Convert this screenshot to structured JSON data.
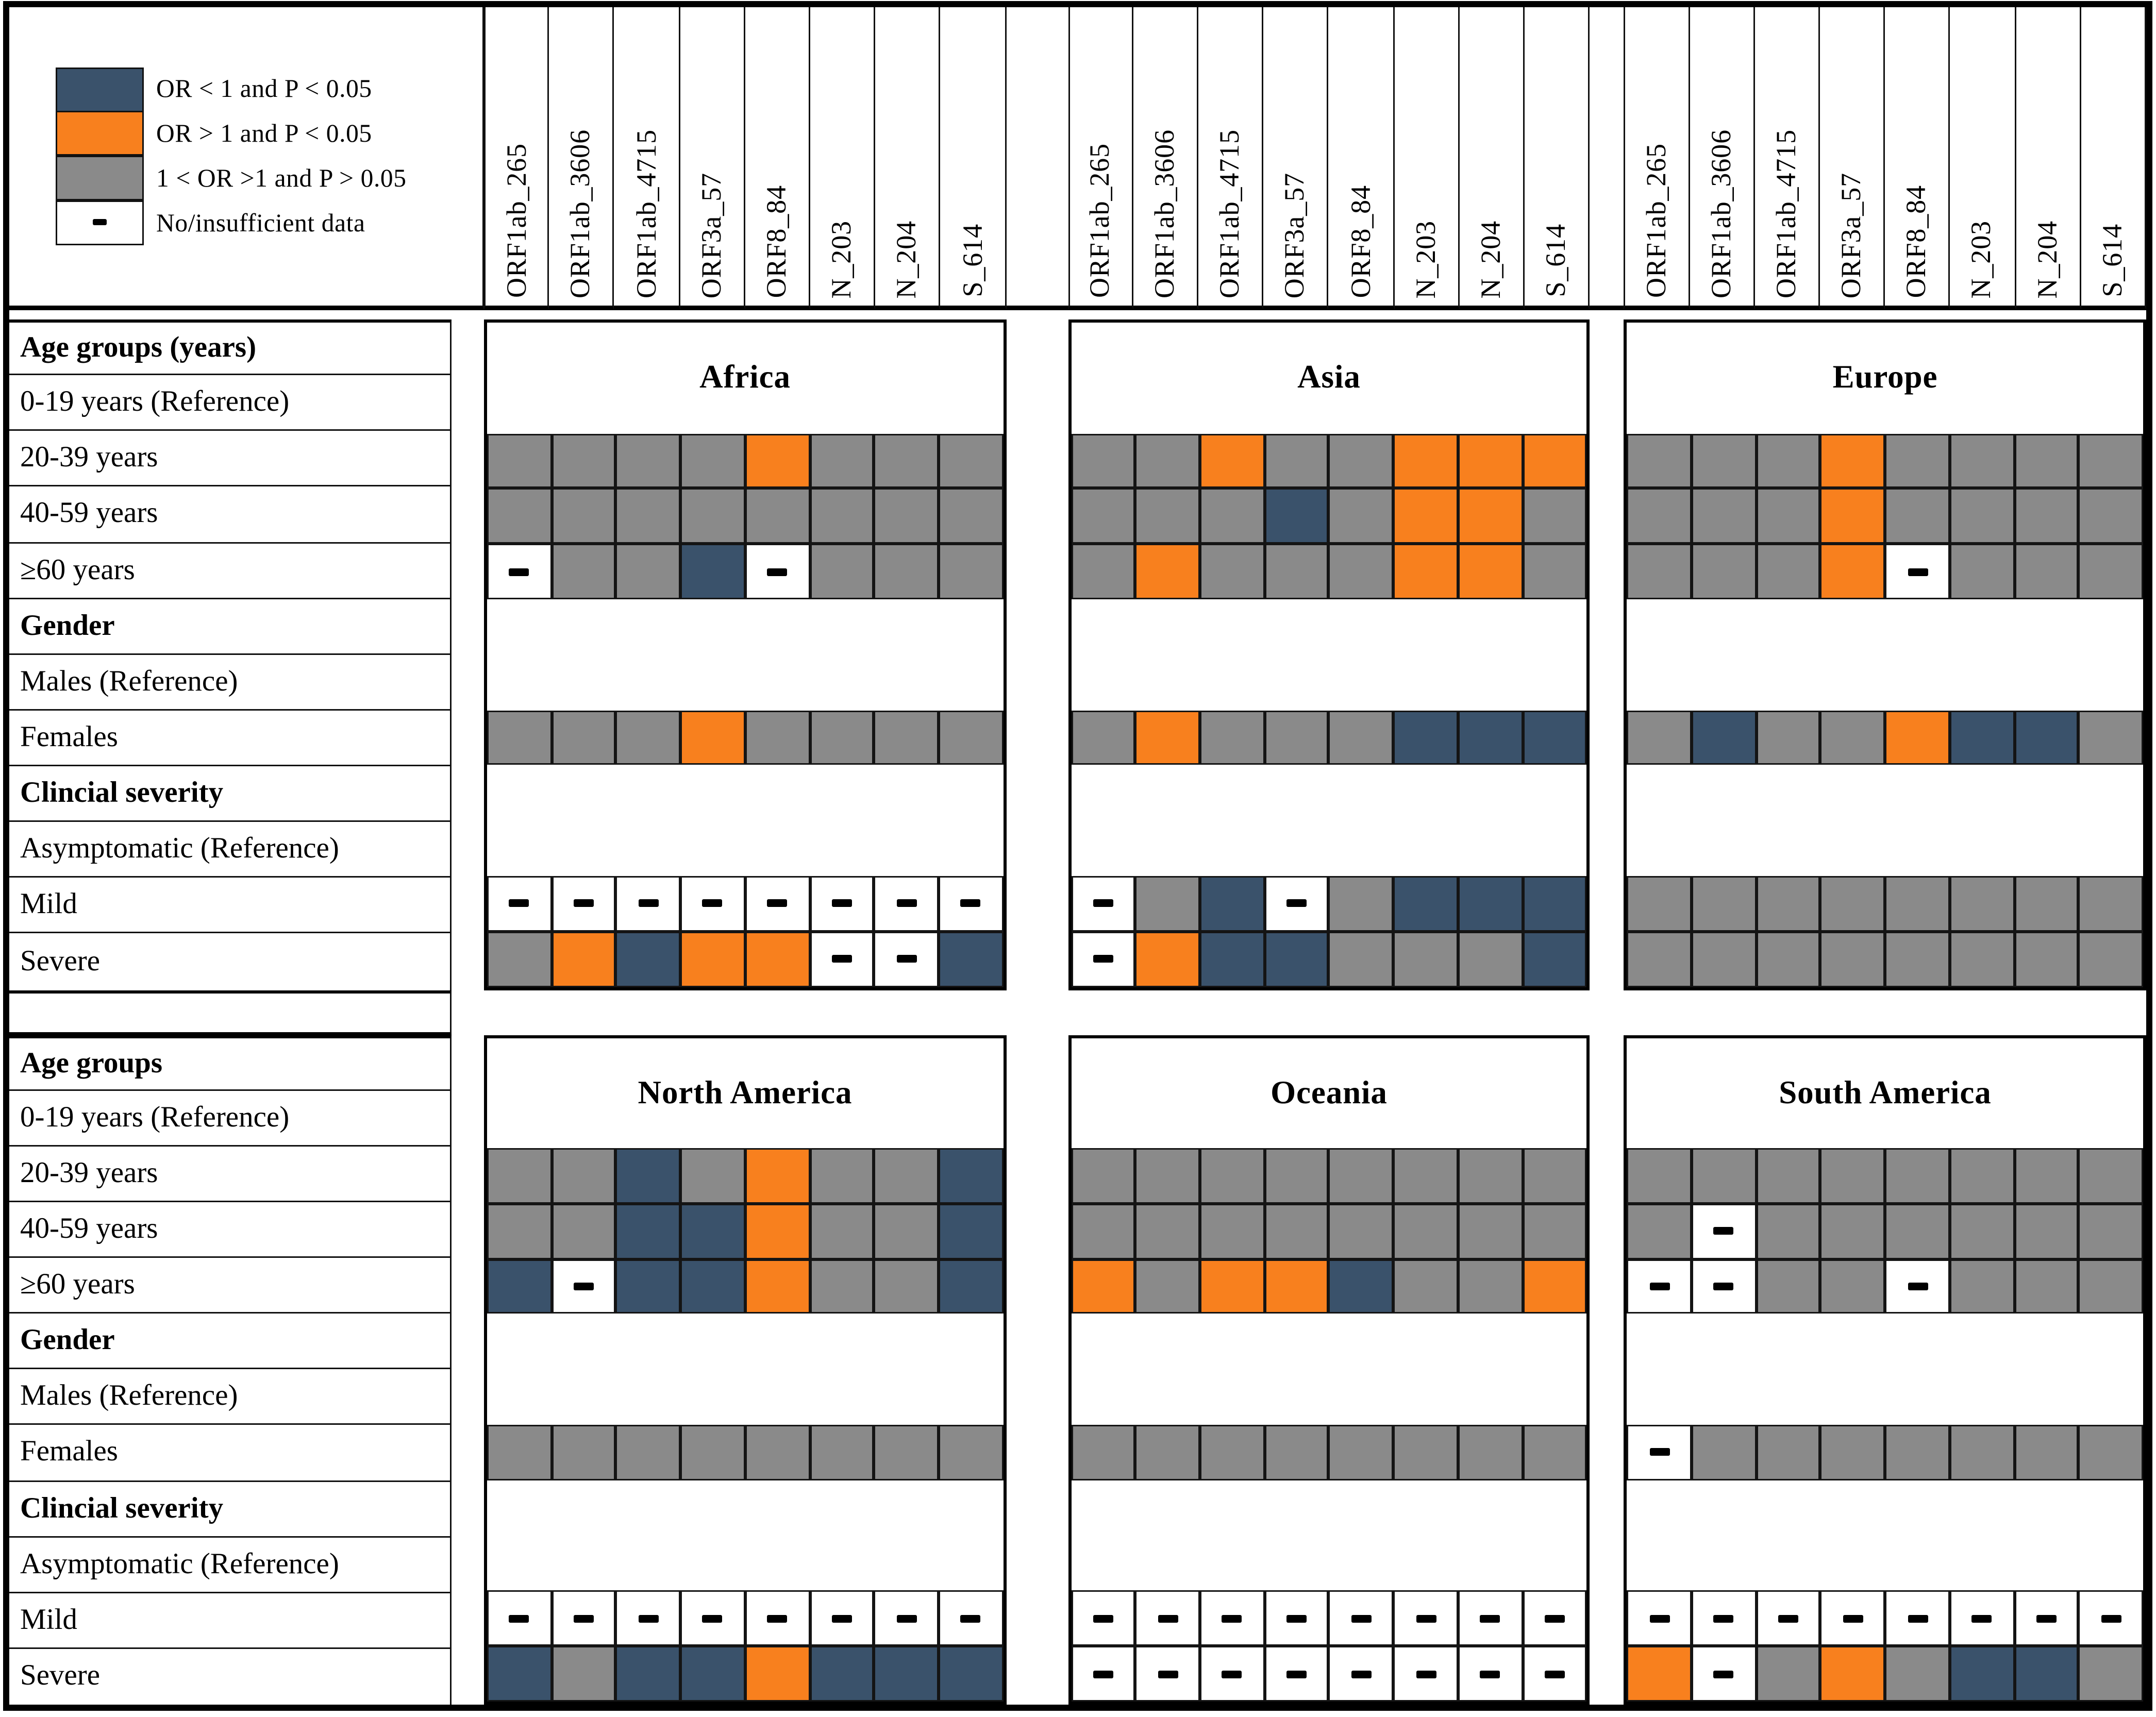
{
  "legend": {
    "items": [
      {
        "key": "b",
        "color": "#3A526B",
        "label": "OR < 1 and P < 0.05"
      },
      {
        "key": "o",
        "color": "#F8801E",
        "label": "OR > 1 and P < 0.05"
      },
      {
        "key": "g",
        "color": "#8A8A8A",
        "label": "1 < OR >1 and P > 0.05"
      },
      {
        "key": "-",
        "color": "#FFFFFF",
        "label": "No/insufficient data",
        "mark": "-"
      }
    ]
  },
  "chart_data": {
    "type": "heatmap",
    "columns": [
      "ORF1ab_265",
      "ORF1ab_3606",
      "ORF1ab_4715",
      "ORF3a_57",
      "ORF8_84",
      "N_203",
      "N_204",
      "S_614"
    ],
    "cell_states": {
      "b": "OR < 1 and P < 0.05",
      "o": "OR > 1 and P < 0.05",
      "g": "1 < OR >1 and P > 0.05",
      "-": "No/insufficient data"
    },
    "colors": {
      "b": "#3A526B",
      "o": "#F8801E",
      "g": "#8A8A8A",
      "-": "#FFFFFF"
    },
    "data_row_positions": [
      2,
      3,
      4,
      7,
      10,
      11
    ],
    "tables": [
      {
        "row_labels": [
          {
            "label": "Age groups (years)",
            "bold": true
          },
          {
            "label": "0-19 years (Reference)",
            "bold": false
          },
          {
            "label": "20-39 years",
            "bold": false
          },
          {
            "label": "40-59 years",
            "bold": false
          },
          {
            "label": "≥60 years",
            "bold": false
          },
          {
            "label": "Gender",
            "bold": true
          },
          {
            "label": "Males (Reference)",
            "bold": false
          },
          {
            "label": "Females",
            "bold": false
          },
          {
            "label": "Clincial severity",
            "bold": true
          },
          {
            "label": "Asymptomatic (Reference)",
            "bold": false
          },
          {
            "label": "Mild",
            "bold": false
          },
          {
            "label": "Severe",
            "bold": false
          }
        ],
        "data_rows": [
          "20-39 years",
          "40-59 years",
          "≥60 years",
          "Females",
          "Mild",
          "Severe"
        ],
        "panels": [
          {
            "title": "Africa",
            "matrix": [
              [
                "g",
                "g",
                "g",
                "g",
                "o",
                "g",
                "g",
                "g"
              ],
              [
                "g",
                "g",
                "g",
                "g",
                "g",
                "g",
                "g",
                "g"
              ],
              [
                "-",
                "g",
                "g",
                "b",
                "-",
                "g",
                "g",
                "g"
              ],
              [
                "g",
                "g",
                "g",
                "o",
                "g",
                "g",
                "g",
                "g"
              ],
              [
                "-",
                "-",
                "-",
                "-",
                "-",
                "-",
                "-",
                "-"
              ],
              [
                "g",
                "o",
                "b",
                "o",
                "o",
                "-",
                "-",
                "b"
              ]
            ]
          },
          {
            "title": "Asia",
            "matrix": [
              [
                "g",
                "g",
                "o",
                "g",
                "g",
                "o",
                "o",
                "o"
              ],
              [
                "g",
                "g",
                "g",
                "b",
                "g",
                "o",
                "o",
                "g"
              ],
              [
                "g",
                "o",
                "g",
                "g",
                "g",
                "o",
                "o",
                "g"
              ],
              [
                "g",
                "o",
                "g",
                "g",
                "g",
                "b",
                "b",
                "b"
              ],
              [
                "-",
                "g",
                "b",
                "-",
                "g",
                "b",
                "b",
                "b"
              ],
              [
                "-",
                "o",
                "b",
                "b",
                "g",
                "g",
                "g",
                "b"
              ]
            ]
          },
          {
            "title": "Europe",
            "matrix": [
              [
                "g",
                "g",
                "g",
                "o",
                "g",
                "g",
                "g",
                "g"
              ],
              [
                "g",
                "g",
                "g",
                "o",
                "g",
                "g",
                "g",
                "g"
              ],
              [
                "g",
                "g",
                "g",
                "o",
                "-",
                "g",
                "g",
                "g"
              ],
              [
                "g",
                "b",
                "g",
                "g",
                "o",
                "b",
                "b",
                "g"
              ],
              [
                "g",
                "g",
                "g",
                "g",
                "g",
                "g",
                "g",
                "g"
              ],
              [
                "g",
                "g",
                "g",
                "g",
                "g",
                "g",
                "g",
                "g"
              ]
            ]
          }
        ]
      },
      {
        "row_labels": [
          {
            "label": "Age groups",
            "bold": true
          },
          {
            "label": "0-19 years (Reference)",
            "bold": false
          },
          {
            "label": "20-39 years",
            "bold": false
          },
          {
            "label": "40-59 years",
            "bold": false
          },
          {
            "label": "≥60 years",
            "bold": false
          },
          {
            "label": "Gender",
            "bold": true
          },
          {
            "label": "Males (Reference)",
            "bold": false
          },
          {
            "label": "Females",
            "bold": false
          },
          {
            "label": "Clincial severity",
            "bold": true
          },
          {
            "label": "Asymptomatic (Reference)",
            "bold": false
          },
          {
            "label": "Mild",
            "bold": false
          },
          {
            "label": "Severe",
            "bold": false
          }
        ],
        "data_rows": [
          "20-39 years",
          "40-59 years",
          "≥60 years",
          "Females",
          "Mild",
          "Severe"
        ],
        "panels": [
          {
            "title": "North America",
            "matrix": [
              [
                "g",
                "g",
                "b",
                "g",
                "o",
                "g",
                "g",
                "b"
              ],
              [
                "g",
                "g",
                "b",
                "b",
                "o",
                "g",
                "g",
                "b"
              ],
              [
                "b",
                "-",
                "b",
                "b",
                "o",
                "g",
                "g",
                "b"
              ],
              [
                "g",
                "g",
                "g",
                "g",
                "g",
                "g",
                "g",
                "g"
              ],
              [
                "-",
                "-",
                "-",
                "-",
                "-",
                "-",
                "-",
                "-"
              ],
              [
                "b",
                "g",
                "b",
                "b",
                "o",
                "b",
                "b",
                "b"
              ]
            ]
          },
          {
            "title": "Oceania",
            "matrix": [
              [
                "g",
                "g",
                "g",
                "g",
                "g",
                "g",
                "g",
                "g"
              ],
              [
                "g",
                "g",
                "g",
                "g",
                "g",
                "g",
                "g",
                "g"
              ],
              [
                "o",
                "g",
                "o",
                "o",
                "b",
                "g",
                "g",
                "o"
              ],
              [
                "g",
                "g",
                "g",
                "g",
                "g",
                "g",
                "g",
                "g"
              ],
              [
                "-",
                "-",
                "-",
                "-",
                "-",
                "-",
                "-",
                "-"
              ],
              [
                "-",
                "-",
                "-",
                "-",
                "-",
                "-",
                "-",
                "-"
              ]
            ]
          },
          {
            "title": "South America",
            "matrix": [
              [
                "g",
                "g",
                "g",
                "g",
                "g",
                "g",
                "g",
                "g"
              ],
              [
                "g",
                "-",
                "g",
                "g",
                "g",
                "g",
                "g",
                "g"
              ],
              [
                "-",
                "-",
                "g",
                "g",
                "-",
                "g",
                "g",
                "g"
              ],
              [
                "-",
                "g",
                "g",
                "g",
                "g",
                "g",
                "g",
                "g"
              ],
              [
                "-",
                "-",
                "-",
                "-",
                "-",
                "-",
                "-",
                "-"
              ],
              [
                "o",
                "-",
                "g",
                "o",
                "g",
                "b",
                "b",
                "g"
              ]
            ]
          }
        ]
      }
    ]
  }
}
